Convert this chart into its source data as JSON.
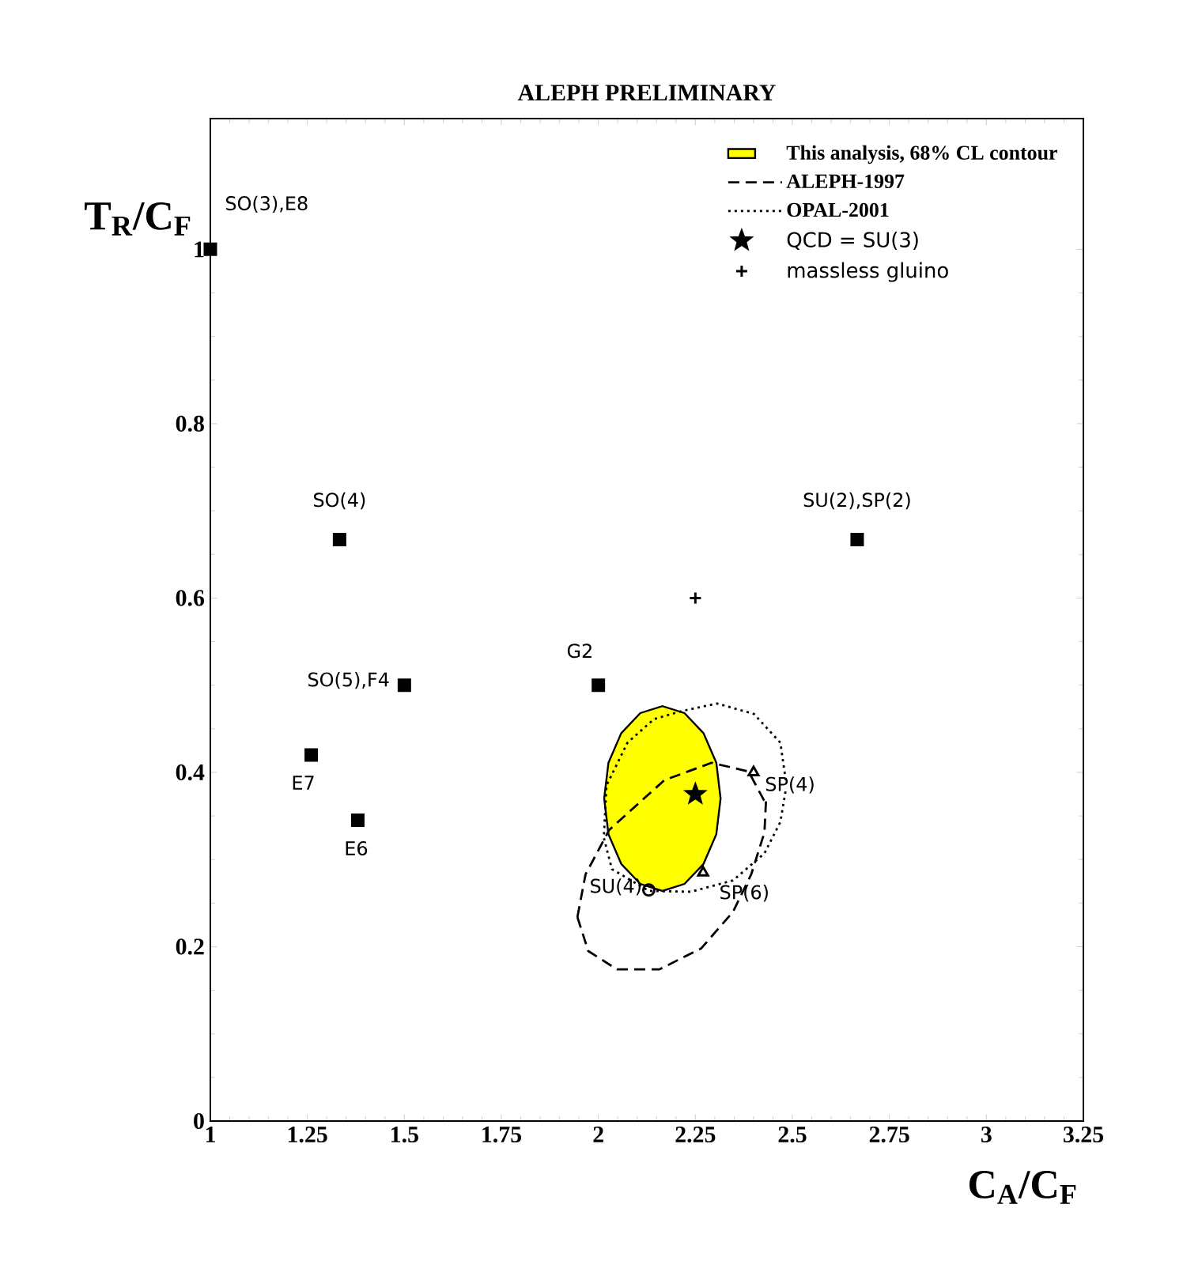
{
  "chart_data": {
    "type": "scatter",
    "title": "ALEPH PRELIMINARY",
    "xlabel": "C$_{A}$/C$_{F}$",
    "ylabel": "T$_{R}$/C$_{F}$",
    "xlim": [
      1,
      3.25
    ],
    "ylim": [
      0,
      1.15
    ],
    "xticks": [
      1,
      1.25,
      1.5,
      1.75,
      2,
      2.25,
      2.5,
      2.75,
      3,
      3.25
    ],
    "yticks": [
      0,
      0.2,
      0.4,
      0.6,
      0.8,
      1
    ],
    "legend": "top right",
    "series": [
      {
        "name": "This analysis, 68% CL contour",
        "type": "area",
        "color": "#ffff00",
        "x": [
          2.315,
          2.304,
          2.271,
          2.222,
          2.165,
          2.108,
          2.059,
          2.026,
          2.015,
          2.026,
          2.059,
          2.108,
          2.165,
          2.222,
          2.271,
          2.304,
          2.315
        ],
        "values": [
          0.37,
          0.411,
          0.445,
          0.468,
          0.476,
          0.468,
          0.445,
          0.411,
          0.37,
          0.329,
          0.295,
          0.272,
          0.264,
          0.272,
          0.295,
          0.329,
          0.37
        ]
      },
      {
        "name": "ALEPH-1997",
        "type": "line",
        "color": "#000000",
        "line_style": "dashed",
        "x": [
          1.946,
          1.967,
          2.028,
          2.17,
          2.292,
          2.387,
          2.428
        ],
        "values": [
          0.234,
          0.283,
          0.334,
          0.391,
          0.411,
          0.401,
          0.367
        ]
      },
      {
        "type": "line",
        "color": "#000000",
        "line_style": "dashed",
        "x": [
          1.946,
          1.974,
          2.048,
          2.157,
          2.265,
          2.347,
          2.394,
          2.428,
          2.432
        ],
        "values": [
          0.234,
          0.195,
          0.174,
          0.174,
          0.198,
          0.24,
          0.283,
          0.331,
          0.367
        ]
      },
      {
        "name": "OPAL-2001",
        "type": "line",
        "color": "#000000",
        "line_style": "dotted",
        "x": [
          2.483,
          2.469,
          2.401,
          2.306,
          2.212,
          2.143,
          2.075,
          2.021,
          2.014,
          2.035,
          2.13,
          2.238,
          2.347,
          2.428,
          2.469,
          2.483
        ],
        "values": [
          0.391,
          0.434,
          0.467,
          0.479,
          0.47,
          0.461,
          0.434,
          0.385,
          0.325,
          0.289,
          0.264,
          0.263,
          0.276,
          0.307,
          0.343,
          0.38
        ]
      },
      {
        "name": "SO(3),E8",
        "marker": "square",
        "color": "#000000",
        "x": [
          1
        ],
        "values": [
          1
        ]
      },
      {
        "name": "SO(4)",
        "marker": "square",
        "color": "#000000",
        "x": [
          1.333
        ],
        "values": [
          0.667
        ]
      },
      {
        "name": "SU(2),SP(2)",
        "marker": "square",
        "color": "#000000",
        "x": [
          2.667
        ],
        "values": [
          0.667
        ]
      },
      {
        "name": "SO(5),F4",
        "marker": "square",
        "color": "#000000",
        "x": [
          1.5
        ],
        "values": [
          0.5
        ]
      },
      {
        "name": "G2",
        "marker": "square",
        "color": "#000000",
        "x": [
          2
        ],
        "values": [
          0.5
        ]
      },
      {
        "name": "E7",
        "marker": "square",
        "color": "#000000",
        "x": [
          1.26
        ],
        "values": [
          0.42
        ]
      },
      {
        "name": "E6",
        "marker": "square",
        "color": "#000000",
        "x": [
          1.38
        ],
        "values": [
          0.345
        ]
      },
      {
        "name": "SU(4)",
        "marker": "circle",
        "color": "#000000",
        "x": [
          2.13
        ],
        "values": [
          0.265
        ]
      },
      {
        "name": "SP(4)",
        "marker": "triangle",
        "color": "#000000",
        "x": [
          2.4
        ],
        "values": [
          0.4
        ]
      },
      {
        "name": "SP(6)",
        "marker": "triangle",
        "color": "#000000",
        "x": [
          2.27
        ],
        "values": [
          0.285
        ]
      },
      {
        "name": "QCD = SU(3)",
        "marker": "star",
        "color": "#000000",
        "x": [
          2.25
        ],
        "values": [
          0.375
        ]
      },
      {
        "name": "massless gluino",
        "marker": "cross",
        "color": "#000000",
        "x": [
          2.25
        ],
        "values": [
          0.6
        ]
      }
    ]
  }
}
